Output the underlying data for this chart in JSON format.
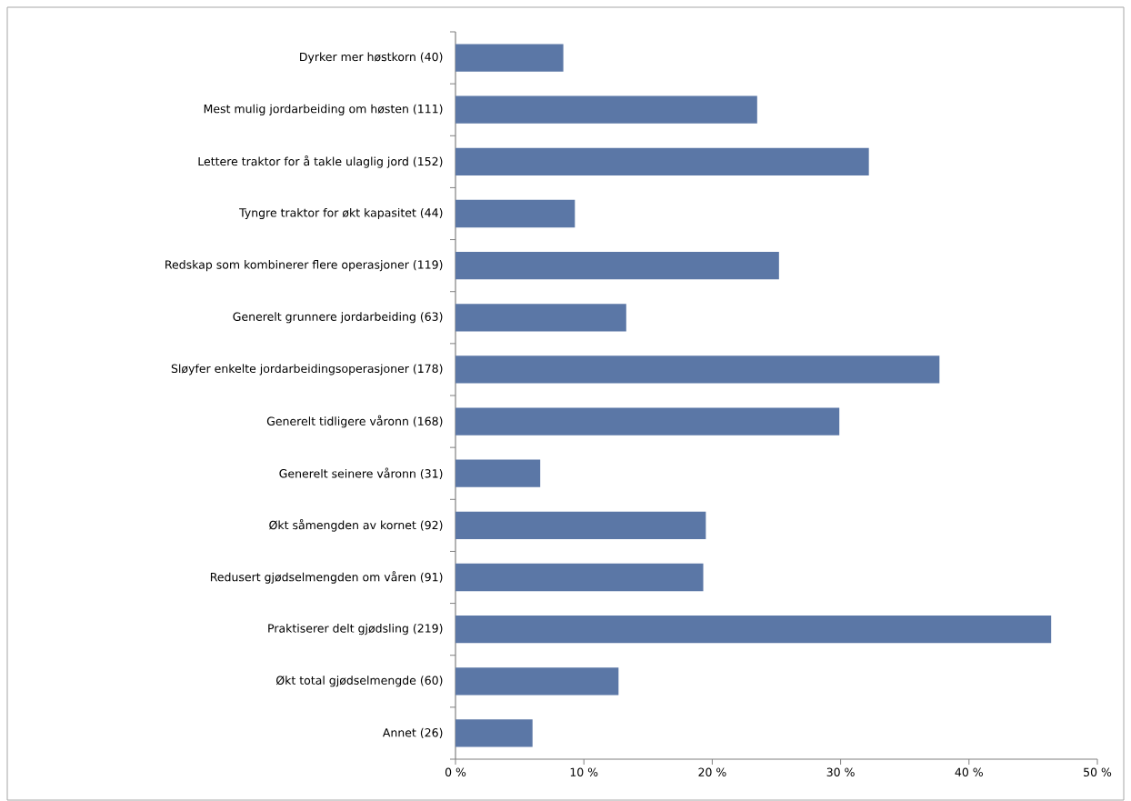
{
  "chart_data": {
    "type": "bar",
    "orientation": "horizontal",
    "categories": [
      "Dyrker mer høstkorn (40)",
      "Mest mulig jordarbeiding om høsten (111)",
      "Lettere traktor for å takle ulaglig jord (152)",
      "Tyngre traktor for økt kapasitet (44)",
      "Redskap som kombinerer flere operasjoner (119)",
      "Generelt grunnere jordarbeiding (63)",
      "Sløyfer enkelte jordarbeidingsoperasjoner (178)",
      "Generelt tidligere våronn (168)",
      "Generelt seinere våronn (31)",
      "Økt såmengden av kornet (92)",
      "Redusert gjødselmengden om våren (91)",
      "Praktiserer delt gjødsling (219)",
      "Økt total gjødselmengde (60)",
      "Annet (26)"
    ],
    "values": [
      8.4,
      23.5,
      32.2,
      9.3,
      25.2,
      13.3,
      37.7,
      29.9,
      6.6,
      19.5,
      19.3,
      46.4,
      12.7,
      6.0
    ],
    "color": "#5b77a6",
    "xlim": [
      0,
      50
    ],
    "xticks": [
      {
        "value": 0,
        "label": "0 %"
      },
      {
        "value": 10,
        "label": "10 %"
      },
      {
        "value": 20,
        "label": "20 %"
      },
      {
        "value": 30,
        "label": "30 %"
      },
      {
        "value": 40,
        "label": "40 %"
      },
      {
        "value": 50,
        "label": "50 %"
      }
    ],
    "grid": false
  }
}
